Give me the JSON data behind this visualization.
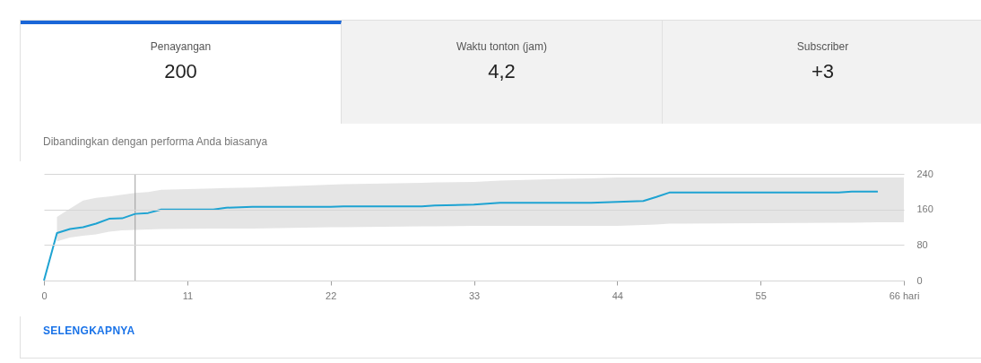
{
  "chart_data": {
    "type": "line",
    "subtitle": "Dibandingkan dengan performa Anda biasanya",
    "annotations": [
      "Penayangan",
      "200",
      "Waktu tonton (jam)",
      "4,2",
      "Subscriber",
      "+3",
      "SELENGKAPNYA"
    ],
    "x": [
      0,
      1,
      2,
      3,
      4,
      5,
      6,
      7,
      8,
      9,
      13,
      14,
      16,
      22,
      23,
      29,
      30,
      33,
      35,
      40,
      42,
      44,
      46,
      47,
      48,
      61,
      62,
      64,
      66
    ],
    "series": [
      {
        "color": "#1ea3d2",
        "values": [
          0,
          107,
          116,
          120,
          128,
          139,
          140,
          150,
          152,
          160,
          160,
          164,
          166,
          166,
          167,
          167,
          169,
          171,
          175,
          175,
          175,
          177,
          179,
          188,
          198,
          198,
          200,
          200,
          null
        ],
        "lower": [
          null,
          88,
          97,
          101,
          104,
          110,
          113,
          114,
          115,
          116,
          117,
          117,
          117,
          120,
          120,
          122,
          122,
          123,
          123,
          123,
          123,
          123,
          125,
          126,
          128,
          130,
          130,
          131,
          131
        ],
        "upper": [
          null,
          143,
          162,
          180,
          186,
          189,
          193,
          197,
          199,
          204,
          207,
          208,
          209,
          216,
          217,
          220,
          221,
          222,
          225,
          229,
          230,
          232,
          232,
          232,
          232,
          232,
          232,
          232,
          232
        ]
      }
    ],
    "xlim": [
      0,
      66
    ],
    "xticks": [
      0,
      11,
      22,
      33,
      44,
      55,
      {
        "value": 66,
        "label": "66 hari"
      }
    ],
    "ylim": [
      0,
      240
    ],
    "yticks": [
      0,
      80,
      160,
      240
    ],
    "grid": "y",
    "marker": "none",
    "line_style": "solid",
    "ref_lines": [
      {
        "axis": "x",
        "value": 7,
        "color": "#9e9e9e"
      }
    ]
  }
}
